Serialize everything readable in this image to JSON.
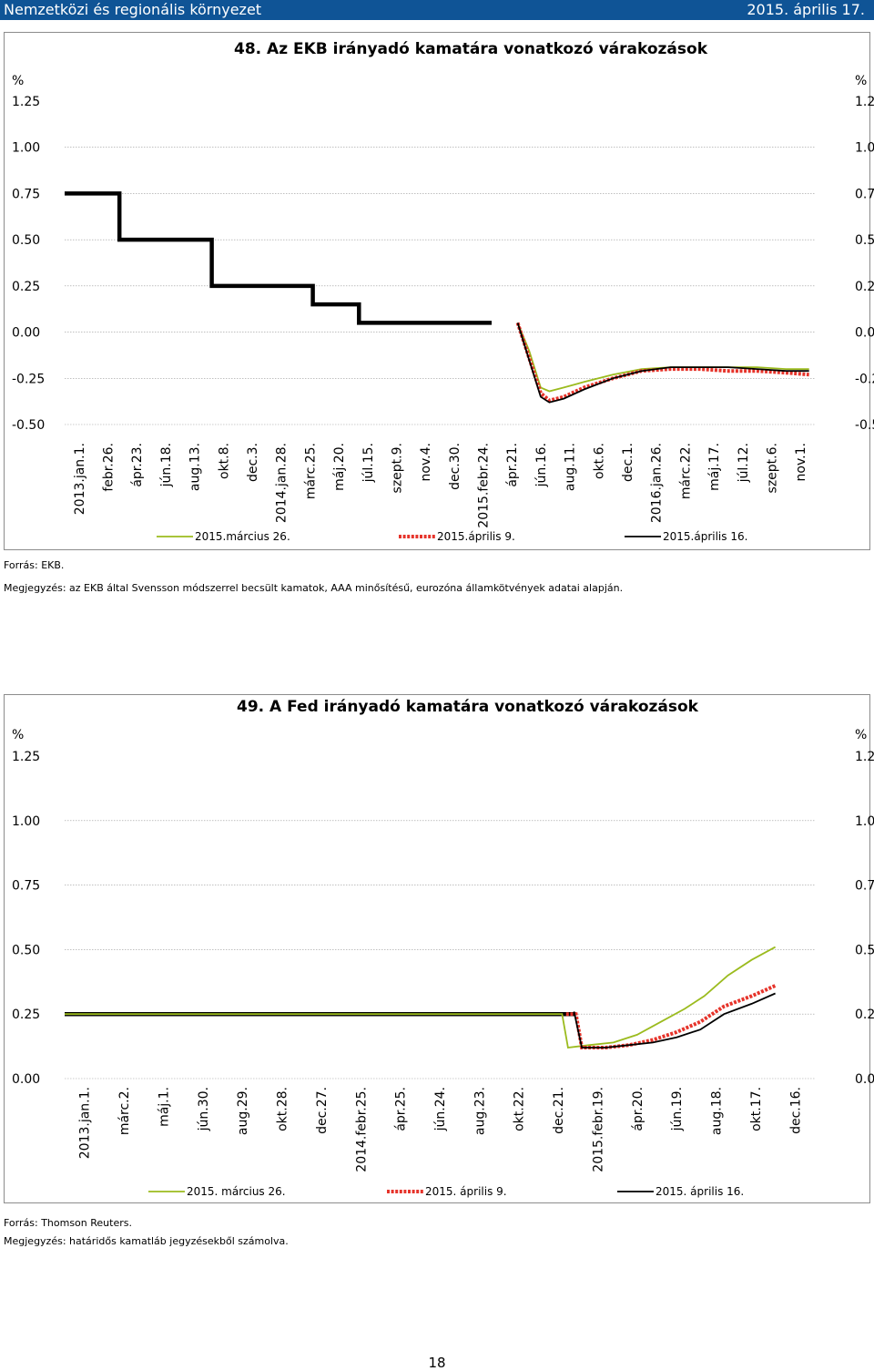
{
  "header": {
    "section": "Nemzetközi és regionális környezet",
    "date": "2015. április 17."
  },
  "chart_data": [
    {
      "type": "line",
      "title": "48. Az EKB irányadó kamatára vonatkozó várakozások",
      "yunit_left": "%",
      "yunit_right": "%",
      "ylim": [
        -0.5,
        1.25
      ],
      "yticks": [
        "1.25",
        "1.00",
        "0.75",
        "0.50",
        "0.25",
        "0.00",
        "-0.25",
        "-0.50"
      ],
      "x_tick_labels": [
        "2013.jan.1.",
        "febr.26.",
        "ápr.23.",
        "jún.18.",
        "aug.13.",
        "okt.8.",
        "dec.3.",
        "2014.jan.28.",
        "márc.25.",
        "máj.20.",
        "júl.15.",
        "szept.9.",
        "nov.4.",
        "dec.30.",
        "2015.febr.24.",
        "ápr.21.",
        "jún.16.",
        "aug.11.",
        "okt.6.",
        "dec.1.",
        "2016.jan.26.",
        "márc.22.",
        "máj.17.",
        "júl.12.",
        "szept.6.",
        "nov.1."
      ],
      "x_range": [
        0,
        26
      ],
      "grid": true,
      "legend": "bottom",
      "series": [
        {
          "name": "2015.március 26.",
          "color": "#9bbb1e",
          "style": "solid-thin",
          "points": [
            [
              15.7,
              0.05
            ],
            [
              16.1,
              -0.1
            ],
            [
              16.5,
              -0.3
            ],
            [
              16.8,
              -0.32
            ],
            [
              17.3,
              -0.3
            ],
            [
              18,
              -0.27
            ],
            [
              19,
              -0.23
            ],
            [
              20,
              -0.2
            ],
            [
              21,
              -0.19
            ],
            [
              22,
              -0.19
            ],
            [
              23,
              -0.19
            ],
            [
              24,
              -0.19
            ],
            [
              25,
              -0.2
            ],
            [
              25.8,
              -0.2
            ]
          ]
        },
        {
          "name": "2015.április 9.",
          "color": "#e6342b",
          "style": "dashed-thick",
          "points": [
            [
              15.7,
              0.05
            ],
            [
              16.1,
              -0.14
            ],
            [
              16.5,
              -0.33
            ],
            [
              16.8,
              -0.37
            ],
            [
              17.3,
              -0.35
            ],
            [
              18,
              -0.3
            ],
            [
              19,
              -0.25
            ],
            [
              20,
              -0.21
            ],
            [
              21,
              -0.2
            ],
            [
              22,
              -0.2
            ],
            [
              23,
              -0.21
            ],
            [
              24,
              -0.21
            ],
            [
              25,
              -0.22
            ],
            [
              25.8,
              -0.23
            ]
          ]
        },
        {
          "name": "2015.április 16.",
          "color": "#000000",
          "style": "solid-thin",
          "points": [
            [
              15.7,
              0.05
            ],
            [
              16.1,
              -0.15
            ],
            [
              16.5,
              -0.35
            ],
            [
              16.8,
              -0.38
            ],
            [
              17.3,
              -0.36
            ],
            [
              18,
              -0.31
            ],
            [
              19,
              -0.25
            ],
            [
              20,
              -0.21
            ],
            [
              21,
              -0.19
            ],
            [
              22,
              -0.19
            ],
            [
              23,
              -0.19
            ],
            [
              24,
              -0.2
            ],
            [
              25,
              -0.21
            ],
            [
              25.8,
              -0.21
            ]
          ]
        },
        {
          "name": "",
          "color": "#000000",
          "style": "step-thick",
          "points": [
            [
              0,
              0.75
            ],
            [
              1.9,
              0.75
            ],
            [
              1.9,
              0.5
            ],
            [
              5.1,
              0.5
            ],
            [
              5.1,
              0.25
            ],
            [
              8.6,
              0.25
            ],
            [
              8.6,
              0.15
            ],
            [
              10.2,
              0.15
            ],
            [
              10.2,
              0.05
            ],
            [
              14.8,
              0.05
            ]
          ]
        }
      ]
    },
    {
      "type": "line",
      "title": "49. A Fed irányadó kamatára vonatkozó várakozások",
      "yunit_left": "%",
      "yunit_right": "%",
      "ylim": [
        0,
        1.25
      ],
      "yticks": [
        "1.25",
        "1.00",
        "0.75",
        "0.50",
        "0.25",
        "0.00"
      ],
      "x_tick_labels": [
        "2013.jan.1.",
        "márc.2.",
        "máj.1.",
        "jún.30.",
        "aug.29.",
        "okt.28.",
        "dec.27.",
        "2014.febr.25.",
        "ápr.25.",
        "jún.24.",
        "aug.23.",
        "okt.22.",
        "dec.21.",
        "2015.febr.19.",
        "ápr.20.",
        "jún.19.",
        "aug.18.",
        "okt.17.",
        "dec.16."
      ],
      "x_range": [
        0,
        19
      ],
      "grid": true,
      "legend": "bottom",
      "series": [
        {
          "name": "2015. március 26.",
          "color": "#9bbb1e",
          "style": "solid-thin",
          "points": [
            [
              0,
              0.25
            ],
            [
              12.6,
              0.25
            ],
            [
              12.75,
              0.12
            ],
            [
              13.3,
              0.13
            ],
            [
              13.9,
              0.14
            ],
            [
              14.5,
              0.17
            ],
            [
              15.1,
              0.22
            ],
            [
              15.7,
              0.27
            ],
            [
              16.2,
              0.32
            ],
            [
              16.8,
              0.4
            ],
            [
              17.4,
              0.46
            ],
            [
              18,
              0.51
            ]
          ]
        },
        {
          "name": "2015. április 9.",
          "color": "#e6342b",
          "style": "dashed-thick",
          "points": [
            [
              12.7,
              0.25
            ],
            [
              12.95,
              0.25
            ],
            [
              13.1,
              0.12
            ],
            [
              13.7,
              0.12
            ],
            [
              14.3,
              0.13
            ],
            [
              14.9,
              0.15
            ],
            [
              15.5,
              0.18
            ],
            [
              16.1,
              0.22
            ],
            [
              16.7,
              0.28
            ],
            [
              17.4,
              0.32
            ],
            [
              18,
              0.36
            ]
          ]
        },
        {
          "name": "2015. április 16.",
          "color": "#000000",
          "style": "solid-thin",
          "points": [
            [
              12.9,
              0.26
            ],
            [
              13.1,
              0.12
            ],
            [
              13.7,
              0.12
            ],
            [
              14.3,
              0.13
            ],
            [
              14.9,
              0.14
            ],
            [
              15.5,
              0.16
            ],
            [
              16.1,
              0.19
            ],
            [
              16.7,
              0.25
            ],
            [
              17.4,
              0.29
            ],
            [
              18,
              0.33
            ]
          ]
        },
        {
          "name": "",
          "color": "#000000",
          "style": "solid-thick",
          "points": [
            [
              0,
              0.25
            ],
            [
              12.95,
              0.25
            ]
          ]
        }
      ]
    }
  ],
  "notes": {
    "source1": "Forrás: EKB.",
    "note1": "Megjegyzés: az EKB által Svensson módszerrel becsült kamatok, AAA minősítésű, eurozóna államkötvények adatai alapján.",
    "source2": "Forrás: Thomson Reuters.",
    "note2": "Megjegyzés: határidős kamatláb jegyzésekből számolva."
  },
  "page_number": "18"
}
